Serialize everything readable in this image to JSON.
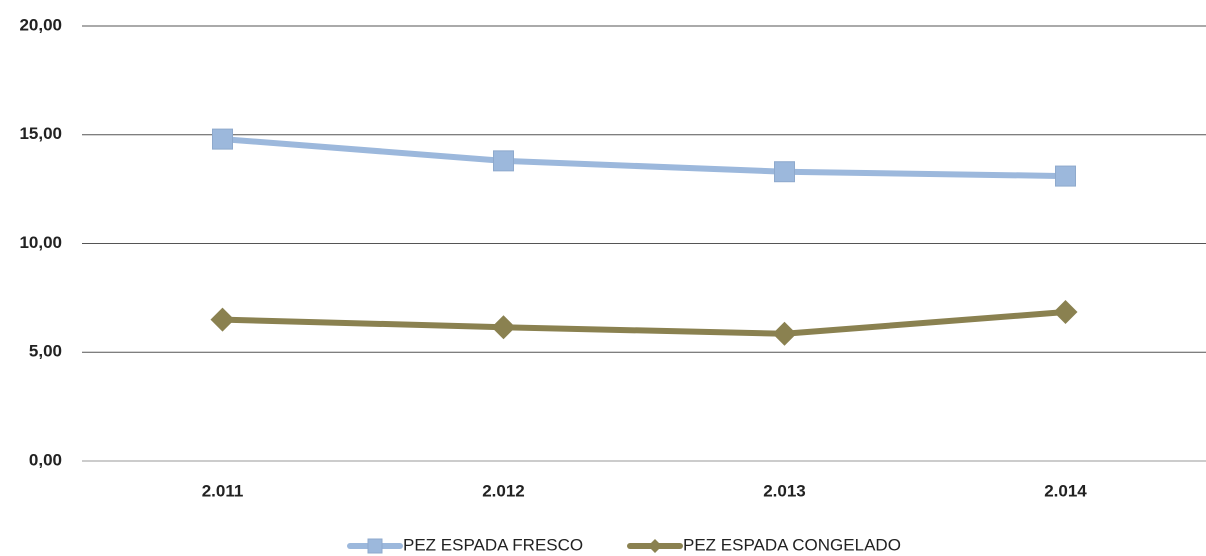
{
  "chart_data": {
    "type": "line",
    "categories": [
      "2.011",
      "2.012",
      "2.013",
      "2.014"
    ],
    "series": [
      {
        "name": "PEZ ESPADA FRESCO",
        "color": "#9cb8dc",
        "marker": "square",
        "values": [
          14.8,
          13.8,
          13.3,
          13.1
        ]
      },
      {
        "name": "PEZ ESPADA CONGELADO",
        "color": "#8a8150",
        "marker": "diamond",
        "values": [
          6.5,
          6.15,
          5.85,
          6.85
        ]
      }
    ],
    "ylim": [
      0,
      20
    ],
    "yticks": [
      {
        "value": 0,
        "label": "0,00"
      },
      {
        "value": 5,
        "label": "5,00"
      },
      {
        "value": 10,
        "label": "10,00"
      },
      {
        "value": 15,
        "label": "15,00"
      },
      {
        "value": 20,
        "label": "20,00"
      }
    ],
    "grid": true,
    "legend": "bottom"
  }
}
